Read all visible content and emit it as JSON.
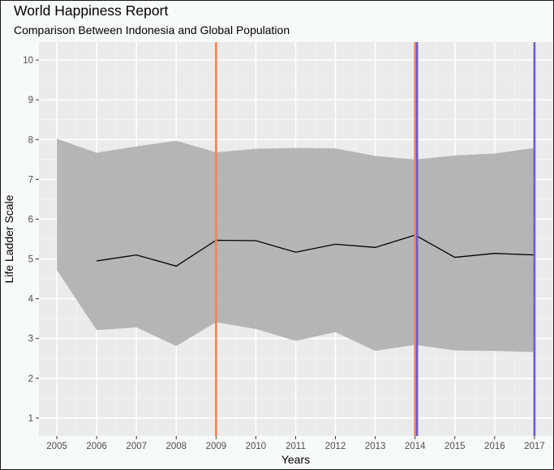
{
  "title": "World Happiness Report",
  "subtitle": "Comparison Between Indonesia and Global Population",
  "chart_data": {
    "type": "line",
    "title": "World Happiness Report",
    "subtitle": "Comparison Between Indonesia and Global Population",
    "xlabel": "Years",
    "ylabel": "Life Ladder Scale",
    "xlim": [
      2004.55,
      2017.45
    ],
    "ylim": [
      0.55,
      10.45
    ],
    "x_ticks": [
      2005,
      2006,
      2007,
      2008,
      2009,
      2010,
      2011,
      2012,
      2013,
      2014,
      2015,
      2016,
      2017
    ],
    "y_ticks": [
      1,
      2,
      3,
      4,
      5,
      6,
      7,
      8,
      9,
      10
    ],
    "grid": true,
    "legend": "none",
    "global_range": {
      "x": [
        2005,
        2006,
        2007,
        2008,
        2009,
        2010,
        2011,
        2012,
        2013,
        2014,
        2015,
        2016,
        2017
      ],
      "max": [
        8.02,
        7.67,
        7.83,
        7.97,
        7.68,
        7.77,
        7.79,
        7.78,
        7.59,
        7.5,
        7.6,
        7.65,
        7.79
      ],
      "min": [
        4.72,
        3.21,
        3.28,
        2.81,
        3.41,
        3.24,
        2.94,
        3.16,
        2.69,
        2.84,
        2.7,
        2.69,
        2.66
      ],
      "color": "#b2b2b2"
    },
    "series": [
      {
        "x": [
          2006,
          2007,
          2008,
          2009,
          2010,
          2011,
          2012,
          2013,
          2014,
          2015,
          2016,
          2017
        ],
        "values": [
          4.95,
          5.1,
          4.82,
          5.47,
          5.46,
          5.17,
          5.37,
          5.29,
          5.6,
          5.04,
          5.14,
          5.1
        ],
        "color": "#000000"
      }
    ],
    "vertical_lines": [
      {
        "x": 2009,
        "color": "#ff7f50"
      },
      {
        "x": 2014,
        "color": "#ff7f50"
      },
      {
        "x": 2014.05,
        "color": "#6a5acd"
      },
      {
        "x": 2017,
        "color": "#6a5acd"
      }
    ]
  }
}
